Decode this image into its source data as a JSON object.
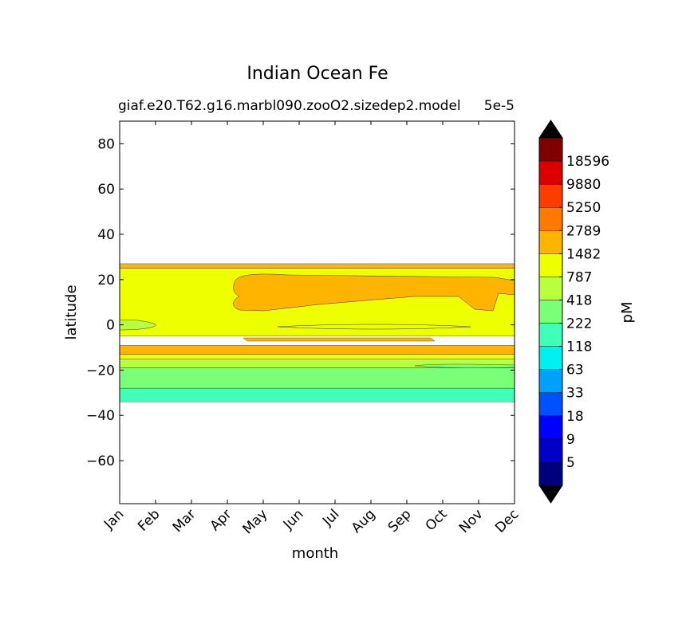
{
  "chart_data": {
    "type": "heatmap",
    "title": "Indian Ocean Fe",
    "subtitle_left": "giaf.e20.T62.g16.marbl090.zooO2.sizedep2.model",
    "subtitle_right": "5e-5",
    "xlabel": "month",
    "ylabel": "latitude",
    "x_categories": [
      "Jan",
      "Feb",
      "Mar",
      "Apr",
      "May",
      "Jun",
      "Jul",
      "Aug",
      "Sep",
      "Oct",
      "Nov",
      "Dec"
    ],
    "ylim": [
      -79,
      90
    ],
    "y_ticks": [
      80,
      60,
      40,
      20,
      0,
      -20,
      -40,
      -60
    ],
    "y_tick_labels": [
      "80",
      "60",
      "40",
      "20",
      "0",
      "−20",
      "−40",
      "−60"
    ],
    "data_lat_range": [
      -34,
      27
    ],
    "colorbar": {
      "label": "pM",
      "levels": [
        5,
        9,
        18,
        33,
        63,
        118,
        222,
        418,
        787,
        1482,
        2789,
        5250,
        9880,
        18596
      ],
      "level_labels": [
        "5",
        "9",
        "18",
        "33",
        "63",
        "118",
        "222",
        "418",
        "787",
        "1482",
        "2789",
        "5250",
        "9880",
        "18596"
      ],
      "colors": [
        "#00007f",
        "#0000c8",
        "#0000ff",
        "#0050ff",
        "#00a0ff",
        "#00f0f0",
        "#40ffb8",
        "#7cff78",
        "#b8ff40",
        "#eeff00",
        "#ffb400",
        "#ff7800",
        "#ff3c00",
        "#dc0000",
        "#7f0000"
      ],
      "extend_color": "#000000"
    },
    "bands": [
      {
        "lat_min": 25,
        "lat_max": 27,
        "level": "1482-2789"
      },
      {
        "lat_min": 8,
        "lat_max": 22,
        "level": "1482-2789",
        "months": "Apr-Dec"
      },
      {
        "lat_min": -5,
        "lat_max": 25,
        "level": "787-1482"
      },
      {
        "lat_min": -13,
        "lat_max": -9,
        "level": "1482-2789"
      },
      {
        "lat_min": -15,
        "lat_max": -13,
        "level": "787-1482"
      },
      {
        "lat_min": -19,
        "lat_max": -15,
        "level": "418-787"
      },
      {
        "lat_min": -28,
        "lat_max": -19,
        "level": "222-418"
      },
      {
        "lat_min": -34,
        "lat_max": -28,
        "level": "118-222"
      }
    ]
  }
}
